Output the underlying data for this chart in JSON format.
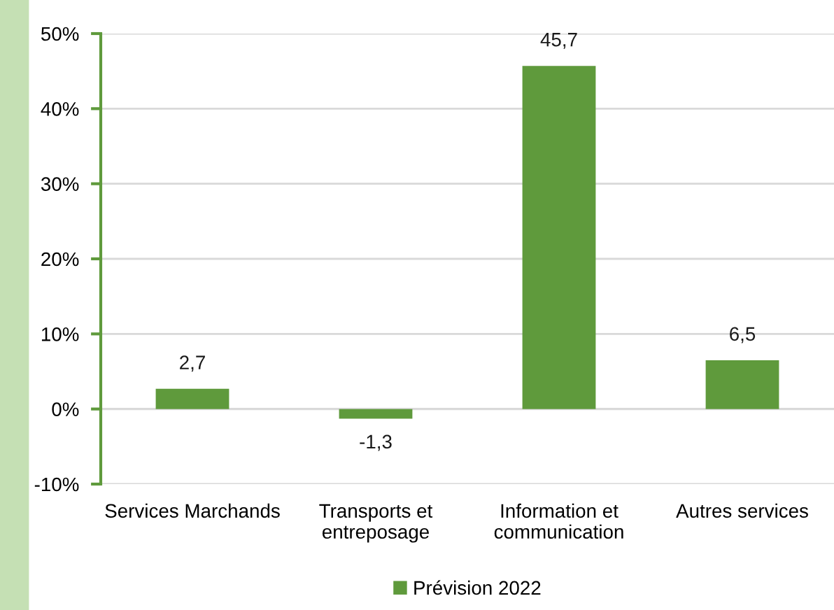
{
  "chart_data": {
    "type": "bar",
    "categories": [
      "Services Marchands",
      "Transports et\nentreposage",
      "Information et\ncommunication",
      "Autres services"
    ],
    "series": [
      {
        "name": "Prévision 2022",
        "color": "#5f9a3c",
        "values": [
          2.7,
          -1.3,
          45.7,
          6.5
        ],
        "value_labels": [
          "2,7",
          "-1,3",
          "45,7",
          "6,5"
        ]
      }
    ],
    "ylim": [
      -10,
      50
    ],
    "yticks": [
      {
        "value": -10,
        "label": "-10%"
      },
      {
        "value": 0,
        "label": "0%"
      },
      {
        "value": 10,
        "label": "10%"
      },
      {
        "value": 20,
        "label": "20%"
      },
      {
        "value": 30,
        "label": "30%"
      },
      {
        "value": 40,
        "label": "40%"
      },
      {
        "value": 50,
        "label": "50%"
      }
    ],
    "grid": "y",
    "legend": "bottom"
  }
}
